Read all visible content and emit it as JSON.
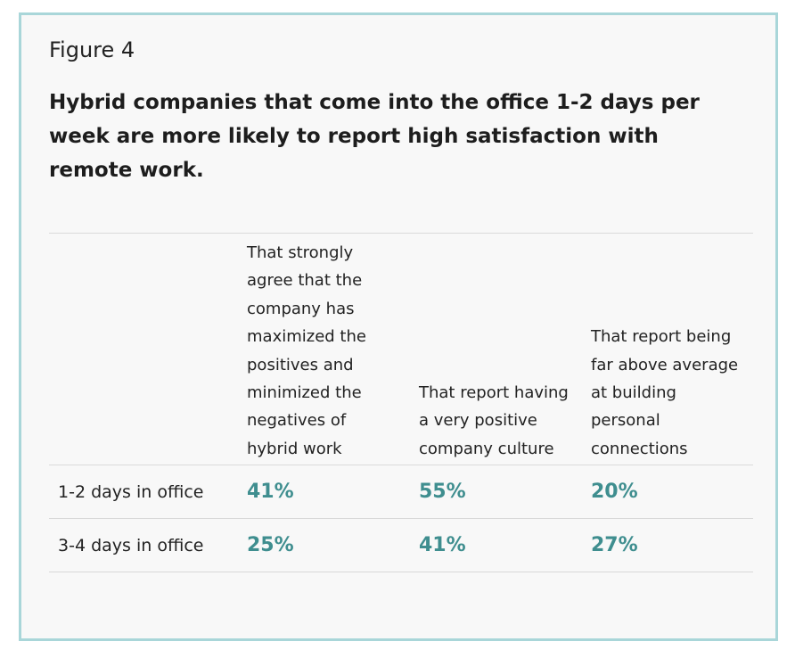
{
  "figure": {
    "label": "Figure 4",
    "title": "Hybrid companies that come into the office 1-2 days per week are more likely to report high satisfaction with remote work."
  },
  "colors": {
    "border": "#a9d6d9",
    "background": "#f8f8f8",
    "value": "#3f8e8f"
  },
  "chart_data": {
    "type": "table",
    "columns": [
      "That strongly agree that the company has maximized the positives and minimized the negatives of hybrid work",
      "That report having a very positive company culture",
      "That report being far above average at building personal connections"
    ],
    "rows": [
      {
        "label": "1-2 days in office",
        "values": [
          "41%",
          "55%",
          "20%"
        ]
      },
      {
        "label": "3-4 days in office",
        "values": [
          "25%",
          "41%",
          "27%"
        ]
      }
    ]
  }
}
